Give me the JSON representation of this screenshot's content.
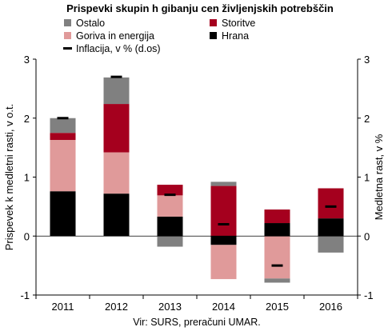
{
  "chart_data": {
    "type": "bar",
    "stacked": true,
    "title": "Prispevki skupin h gibanju cen življenjskih potrebščin",
    "ylabel_left": "Prispevek k medletni rasti, v o.t.",
    "ylabel_right": "Medletna rast, v %",
    "source": "Vir: SURS, preračuni UMAR.",
    "categories": [
      "2011",
      "2012",
      "2013",
      "2014",
      "2015",
      "2016"
    ],
    "ylim": [
      -1,
      3
    ],
    "yticks": [
      "-1",
      "0",
      "1",
      "2",
      "3"
    ],
    "grid": false,
    "legend_position": "top",
    "series": [
      {
        "name": "Hrana",
        "color": "#000000",
        "values": [
          0.76,
          0.72,
          0.33,
          -0.15,
          0.22,
          0.3
        ]
      },
      {
        "name": "Goriva in energija",
        "color": "#e09a9a",
        "values": [
          0.87,
          0.7,
          0.36,
          -0.58,
          -0.72,
          0.0
        ]
      },
      {
        "name": "Storitve",
        "color": "#a5001e",
        "values": [
          0.12,
          0.82,
          0.18,
          0.85,
          0.23,
          0.51
        ]
      },
      {
        "name": "Ostalo",
        "color": "#808080",
        "values": [
          0.25,
          0.45,
          -0.18,
          0.07,
          -0.07,
          -0.28
        ]
      }
    ],
    "inflation": {
      "name": "Inflacija, v % (d.os)",
      "color": "#000000",
      "values": [
        2.0,
        2.7,
        0.7,
        0.2,
        -0.5,
        0.5
      ]
    },
    "legend": [
      {
        "name": "Ostalo",
        "type": "box",
        "color": "#808080"
      },
      {
        "name": "Storitve",
        "type": "box",
        "color": "#a5001e"
      },
      {
        "name": "Goriva in energija",
        "type": "box",
        "color": "#e09a9a"
      },
      {
        "name": "Hrana",
        "type": "box",
        "color": "#000000"
      },
      {
        "name": "Inflacija, v % (d.os)",
        "type": "dash",
        "color": "#000000"
      }
    ]
  }
}
